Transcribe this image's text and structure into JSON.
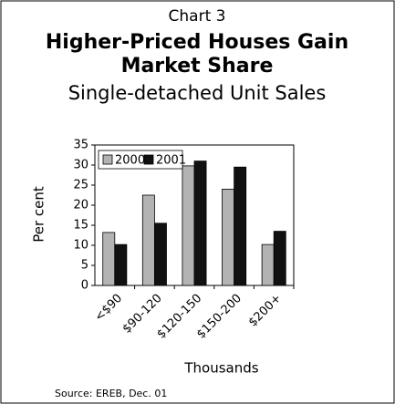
{
  "chart_data": {
    "type": "bar",
    "title": "Chart 3",
    "subtitle_lines": [
      "Higher-Priced Houses Gain",
      "Market Share"
    ],
    "subtitle": "Single-detached Unit Sales",
    "y_label": "Per cent",
    "x_label": "Thousands",
    "source": "Source: EREB, Dec. 01",
    "categories": [
      "<$90",
      "$90-120",
      "$120-150",
      "$150-200",
      "$200+"
    ],
    "series": [
      {
        "name": "2000",
        "color": "#b3b3b3",
        "values": [
          13.2,
          22.5,
          29.8,
          24,
          10.2
        ]
      },
      {
        "name": "2001",
        "color": "#111111",
        "values": [
          10.2,
          15.5,
          31,
          29.5,
          13.5
        ]
      }
    ],
    "ylim": [
      0,
      35
    ],
    "yticks": [
      0,
      5,
      10,
      15,
      20,
      25,
      30,
      35
    ],
    "legend": "top-left"
  }
}
